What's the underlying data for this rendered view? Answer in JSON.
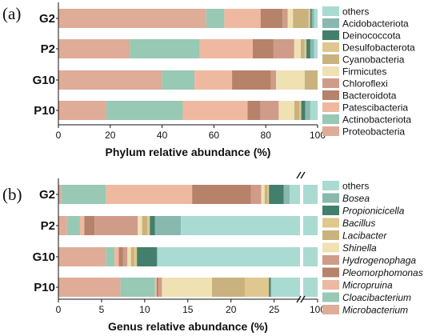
{
  "chart_data": [
    {
      "panel_label": "(a)",
      "type": "bar",
      "orientation": "horizontal",
      "stacked": true,
      "categories": [
        "G2",
        "P2",
        "G10",
        "P10"
      ],
      "xlabel": "Phylum relative abundance (%)",
      "xlim": [
        0,
        100
      ],
      "xticks": [
        "0",
        "20",
        "40",
        "60",
        "80",
        "100"
      ],
      "legend_position": "right",
      "series": [
        {
          "name": "Proteobacteria",
          "color": "#dfac98",
          "values": [
            57,
            27.5,
            40,
            18.5
          ]
        },
        {
          "name": "Actinobacteriota",
          "color": "#98c9b4",
          "values": [
            7,
            27,
            12.5,
            29.5
          ]
        },
        {
          "name": "Patescibacteria",
          "color": "#eeb9a0",
          "values": [
            14,
            20.5,
            14.5,
            25
          ]
        },
        {
          "name": "Bacteroidota",
          "color": "#b6826a",
          "values": [
            8.5,
            8,
            15,
            5
          ]
        },
        {
          "name": "Chloroflexi",
          "color": "#d09c8a",
          "values": [
            2,
            8,
            2,
            7
          ]
        },
        {
          "name": "Firmicutes",
          "color": "#f0e1b3",
          "values": [
            2,
            2.5,
            11,
            6
          ]
        },
        {
          "name": "Cyanobacteria",
          "color": "#c9b27e",
          "values": [
            6,
            1.5,
            5.5,
            2
          ]
        },
        {
          "name": "Desulfobacterota",
          "color": "#e0c78e",
          "values": [
            0.7,
            0.7,
            0.7,
            0.7
          ]
        },
        {
          "name": "Deinococcota",
          "color": "#427f6d",
          "values": [
            0.5,
            1.5,
            1,
            1.5
          ]
        },
        {
          "name": "Acidobacteriota",
          "color": "#89b8ae",
          "values": [
            1,
            1.5,
            0.5,
            2
          ]
        },
        {
          "name": "others",
          "color": "#a9dbd3",
          "values": [
            1.3,
            1.3,
            0.8,
            2.8
          ]
        }
      ]
    },
    {
      "panel_label": "(b)",
      "type": "bar",
      "orientation": "horizontal",
      "stacked": true,
      "broken_axis": true,
      "categories": [
        "G2",
        "P2",
        "G10",
        "P10"
      ],
      "xlabel": "Genus relative abundance (%)",
      "xlim": [
        0,
        28
      ],
      "xticks": [
        "0",
        "5",
        "10",
        "15",
        "20",
        "25"
      ],
      "right_end_label": "100",
      "legend_position": "right",
      "series": [
        {
          "name": "Microbacterium",
          "color": "#dfac98",
          "values": [
            0.3,
            1,
            5.5,
            7.2
          ]
        },
        {
          "name": "Cloacibacterium",
          "color": "#98c9b4",
          "values": [
            5.2,
            1.5,
            1,
            4
          ]
        },
        {
          "name": "Micropruina",
          "color": "#eeb9a0",
          "values": [
            10,
            0.5,
            0.5,
            0.2
          ]
        },
        {
          "name": "Pleomorphomonas",
          "color": "#b6826a",
          "values": [
            6.8,
            1.2,
            0.5,
            0.2
          ]
        },
        {
          "name": "Hydrogenophaga",
          "color": "#d09c8a",
          "values": [
            1.2,
            5,
            0.5,
            0.4
          ]
        },
        {
          "name": "Shinella",
          "color": "#f0e1b3",
          "values": [
            0.4,
            0.5,
            0.4,
            5.8
          ]
        },
        {
          "name": "Lacibacter",
          "color": "#c9b27e",
          "values": [
            0.3,
            0.6,
            0.4,
            3.8
          ]
        },
        {
          "name": "Bacillus",
          "color": "#e0c78e",
          "values": [
            0.2,
            0.3,
            0.3,
            2.8
          ]
        },
        {
          "name": "Propionicicella",
          "color": "#427f6d",
          "values": [
            1.7,
            0.6,
            2.3,
            0.2
          ]
        },
        {
          "name": "Bosea",
          "color": "#89b8ae",
          "values": [
            0.7,
            3,
            0.1,
            0.1
          ]
        },
        {
          "name": "others",
          "color": "#a9dbd3",
          "values": [
            1.2,
            13.8,
            16.5,
            3.3
          ]
        }
      ]
    }
  ]
}
